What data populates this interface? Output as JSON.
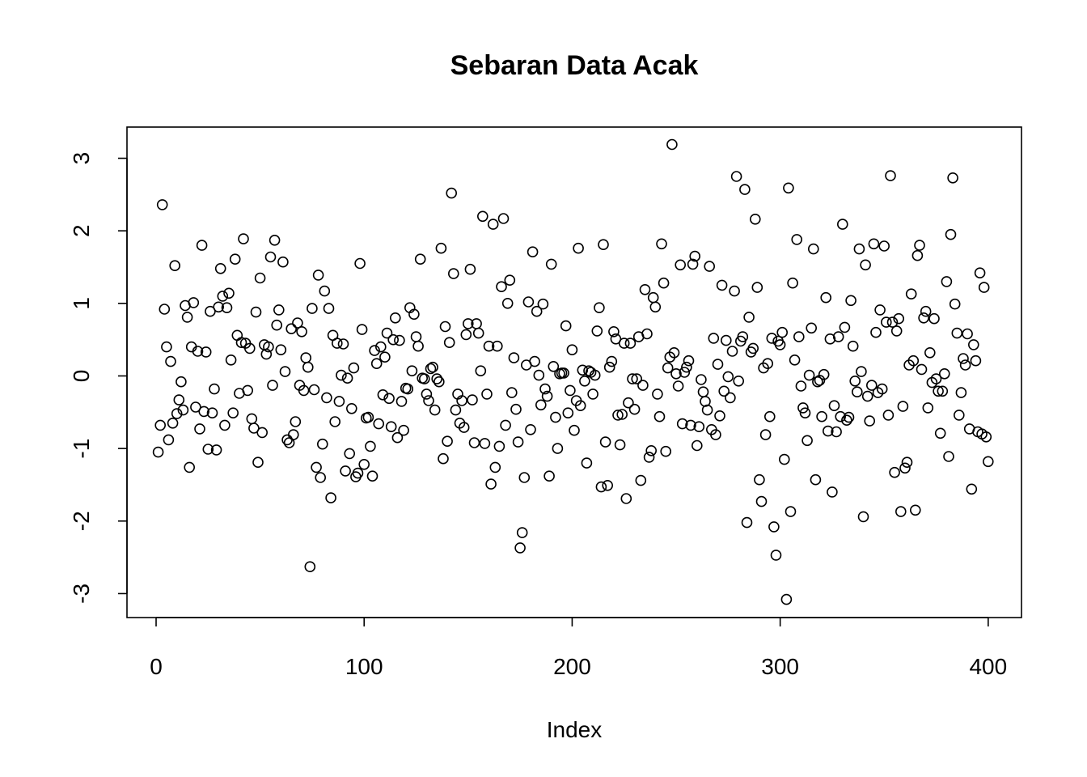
{
  "chart_data": {
    "type": "scatter",
    "title": "Sebaran Data Acak",
    "xlabel": "Index",
    "ylabel": "",
    "xlim": [
      -14,
      416
    ],
    "ylim": [
      -3.33,
      3.43
    ],
    "x_ticks": [
      0,
      100,
      200,
      300,
      400
    ],
    "y_ticks": [
      -3,
      -2,
      -1,
      0,
      1,
      2,
      3
    ],
    "grid": false,
    "legend": "none",
    "x": "1..400 (Index)",
    "y": [
      -1.05,
      -0.68,
      2.36,
      0.92,
      0.4,
      -0.88,
      0.2,
      -0.65,
      1.52,
      -0.52,
      -0.33,
      -0.08,
      -0.47,
      0.97,
      0.81,
      -1.26,
      0.4,
      1.01,
      -0.43,
      0.34,
      -0.73,
      1.8,
      -0.49,
      0.33,
      -1.01,
      0.89,
      -0.51,
      -0.18,
      -1.02,
      0.95,
      1.48,
      1.1,
      -0.68,
      0.94,
      1.14,
      0.22,
      -0.51,
      1.61,
      0.56,
      -0.24,
      0.46,
      1.89,
      0.45,
      -0.2,
      0.38,
      -0.59,
      -0.72,
      0.88,
      -1.19,
      1.35,
      -0.78,
      0.43,
      0.3,
      0.4,
      1.64,
      -0.13,
      1.87,
      0.7,
      0.91,
      0.36,
      1.57,
      0.06,
      -0.88,
      -0.92,
      0.65,
      -0.81,
      -0.63,
      0.73,
      -0.13,
      0.61,
      -0.2,
      0.25,
      0.12,
      -2.63,
      0.93,
      -0.19,
      -1.26,
      1.39,
      -1.4,
      -0.94,
      1.17,
      -0.3,
      0.93,
      -1.68,
      0.56,
      -0.63,
      0.45,
      -0.35,
      0.01,
      0.44,
      -1.31,
      -0.03,
      -1.07,
      -0.45,
      0.11,
      -1.39,
      -1.34,
      1.55,
      0.64,
      -1.22,
      -0.58,
      -0.57,
      -0.97,
      -1.38,
      0.35,
      0.17,
      -0.66,
      0.4,
      -0.26,
      0.26,
      0.59,
      -0.31,
      -0.7,
      0.5,
      0.8,
      -0.85,
      0.49,
      -0.35,
      -0.75,
      -0.17,
      -0.18,
      0.94,
      0.07,
      0.85,
      0.54,
      0.41,
      1.61,
      -0.03,
      -0.04,
      -0.25,
      -0.34,
      0.1,
      0.12,
      -0.47,
      -0.04,
      -0.08,
      1.76,
      -1.14,
      0.68,
      -0.9,
      0.46,
      2.52,
      1.41,
      -0.47,
      -0.25,
      -0.65,
      -0.34,
      -0.71,
      0.57,
      0.72,
      1.47,
      -0.33,
      -0.92,
      0.72,
      0.59,
      0.07,
      2.2,
      -0.93,
      -0.25,
      0.41,
      -1.49,
      2.09,
      -1.26,
      0.41,
      -0.97,
      1.23,
      2.17,
      -0.68,
      1.0,
      1.32,
      -0.23,
      0.25,
      -0.46,
      -0.91,
      -2.37,
      -2.16,
      -1.4,
      0.15,
      1.02,
      -0.74,
      1.71,
      0.2,
      0.89,
      0.01,
      -0.4,
      0.99,
      -0.18,
      -0.28,
      -1.38,
      1.54,
      0.13,
      -0.57,
      -1.0,
      0.03,
      0.04,
      0.04,
      0.69,
      -0.51,
      -0.2,
      0.36,
      -0.75,
      -0.34,
      1.76,
      -0.41,
      0.08,
      -0.07,
      -1.2,
      0.07,
      0.05,
      -0.25,
      0.01,
      0.62,
      0.94,
      -1.53,
      1.81,
      -0.91,
      -1.51,
      0.12,
      0.2,
      0.61,
      0.51,
      -0.54,
      -0.95,
      -0.53,
      0.45,
      -1.69,
      -0.37,
      0.45,
      -0.04,
      -0.46,
      -0.04,
      0.54,
      -1.44,
      -0.13,
      1.19,
      0.58,
      -1.12,
      -1.03,
      1.08,
      0.95,
      -0.25,
      -0.56,
      1.82,
      1.28,
      -1.04,
      0.11,
      0.26,
      3.19,
      0.32,
      0.03,
      -0.14,
      1.53,
      -0.66,
      0.05,
      0.12,
      0.21,
      -0.68,
      1.54,
      1.65,
      -0.96,
      -0.7,
      -0.05,
      -0.22,
      -0.35,
      -0.47,
      1.51,
      -0.74,
      0.52,
      -0.81,
      0.16,
      -0.55,
      1.25,
      -0.21,
      0.49,
      -0.01,
      -0.3,
      0.34,
      1.17,
      2.75,
      -0.07,
      0.48,
      0.54,
      2.57,
      -2.02,
      0.81,
      0.33,
      0.38,
      2.16,
      1.22,
      -1.43,
      -1.73,
      0.11,
      -0.81,
      0.17,
      -0.56,
      0.52,
      -2.08,
      -2.47,
      0.48,
      0.43,
      0.6,
      -1.15,
      -3.08,
      2.59,
      -1.87,
      1.28,
      0.22,
      1.88,
      0.54,
      -0.14,
      -0.44,
      -0.51,
      -0.89,
      0.01,
      0.66,
      1.75,
      -1.43,
      -0.08,
      -0.06,
      -0.56,
      0.02,
      1.08,
      -0.76,
      0.51,
      -1.6,
      -0.41,
      -0.77,
      0.54,
      -0.56,
      2.09,
      0.67,
      -0.61,
      -0.57,
      1.04,
      0.41,
      -0.07,
      -0.22,
      1.75,
      0.06,
      -1.94,
      1.53,
      -0.28,
      -0.62,
      -0.13,
      1.82,
      0.6,
      -0.23,
      0.91,
      -0.18,
      1.79,
      0.74,
      -0.54,
      2.76,
      0.74,
      -1.33,
      0.62,
      0.79,
      -1.87,
      -0.42,
      -1.27,
      -1.19,
      0.15,
      1.13,
      0.21,
      -1.85,
      1.66,
      1.8,
      0.09,
      0.8,
      0.89,
      -0.44,
      0.32,
      -0.09,
      0.79,
      -0.04,
      -0.21,
      -0.79,
      -0.21,
      0.03,
      1.3,
      -1.11,
      1.95,
      2.73,
      0.99,
      0.59,
      -0.54,
      -0.23,
      0.24,
      0.15,
      0.58,
      -0.73,
      -1.56,
      0.43,
      0.21,
      -0.77,
      1.42,
      -0.8,
      1.22,
      -0.84,
      -1.18
    ]
  }
}
